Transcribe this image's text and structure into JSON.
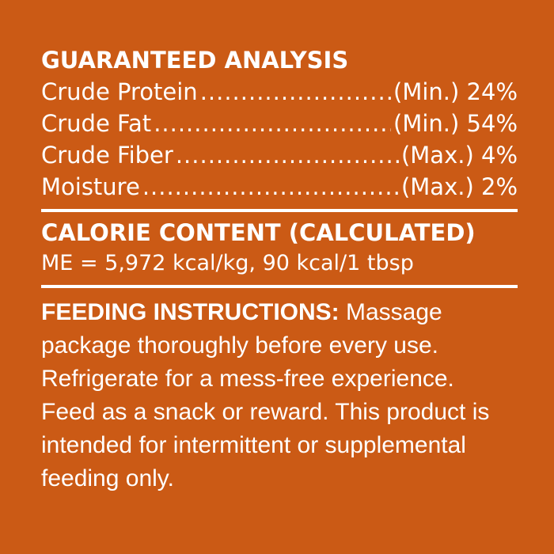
{
  "colors": {
    "background": "#cb5a15",
    "text": "#ffffff"
  },
  "guaranteed_analysis": {
    "title": "GUARANTEED ANALYSIS",
    "rows": [
      {
        "label": "Crude Protein",
        "qualifier": "(Min.) 24%"
      },
      {
        "label": "Crude Fat",
        "qualifier": "(Min.) 54%"
      },
      {
        "label": "Crude Fiber",
        "qualifier": "(Max.) 4%"
      },
      {
        "label": "Moisture",
        "qualifier": "(Max.) 2%"
      }
    ]
  },
  "calorie_content": {
    "title": "CALORIE CONTENT (CALCULATED)",
    "value": "ME = 5,972 kcal/kg, 90 kcal/1 tbsp"
  },
  "feeding": {
    "title": "FEEDING INSTRUCTIONS:",
    "lines": [
      " Massage",
      "package thoroughly before every use.",
      "Refrigerate for a mess-free experience.",
      "Feed as a snack or reward. This product is",
      "intended for intermittent or supplemental",
      "feeding only."
    ]
  }
}
